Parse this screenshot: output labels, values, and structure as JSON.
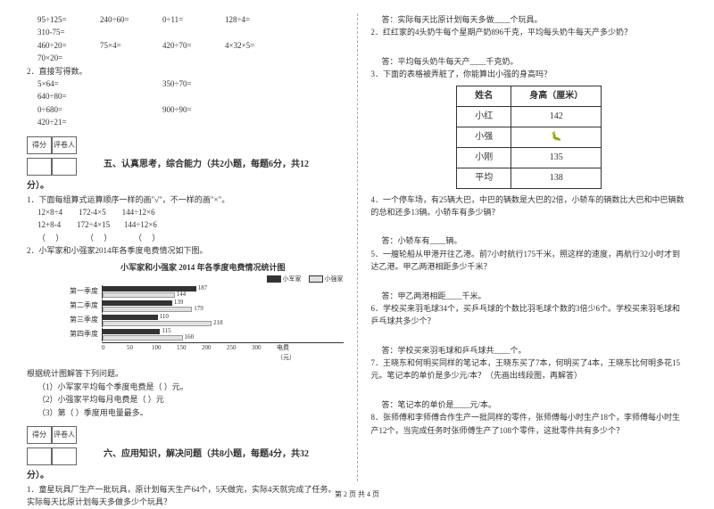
{
  "arithmetic": {
    "rows": [
      [
        "95÷125=",
        "240÷60=",
        "0÷11=",
        "128÷4=",
        "310-75="
      ],
      [
        "460÷20=",
        "75×4=",
        "420÷70=",
        "4×32×5=",
        "70×20="
      ]
    ],
    "direct_label": "2．直接写得数。",
    "direct_rows": [
      [
        "5×64=",
        "",
        "350÷70=",
        "",
        "640÷80="
      ],
      [
        "0÷680=",
        "",
        "900÷90=",
        "",
        "420÷21="
      ]
    ]
  },
  "score_labels": {
    "score": "得分",
    "marker": "评卷人"
  },
  "section5": {
    "title": "五、认真思考，综合能力（共2小题，每题6分，共12",
    "tail": "分）。",
    "q1_intro": "1．下面每组算式运算顺序一样的画\"√\"，不一样的画\"×\"。",
    "q1_groups": [
      "12×8÷4        172-4×5        144÷12×6",
      "12+8-4        172÷4×15       144÷12×6",
      "（     ）           （     ）           （     ）"
    ],
    "q2_intro": "2．小军家和小强家2014年各季度电费情况如下图。",
    "chart": {
      "title": "小军家和小强家 2014 年各季度电费情况统计图",
      "legend": [
        {
          "name": "小军家",
          "color": "#333333"
        },
        {
          "name": "小强家",
          "color": "#e0e0e0"
        }
      ],
      "unit": 50,
      "categories": [
        {
          "label": "第一季度",
          "a": 187,
          "b": 144
        },
        {
          "label": "第二季度",
          "a": 139,
          "b": 179
        },
        {
          "label": "第三季度",
          "a": 110,
          "b": 218
        },
        {
          "label": "第四季度",
          "a": 115,
          "b": 160
        }
      ],
      "xticks": [
        0,
        50,
        100,
        150,
        200,
        250,
        300
      ],
      "xlabel": "电费（元）"
    },
    "q2_tail": [
      "根据统计图解答下列问题。",
      "（1）小军家平均每个季度电费是（     ）元。",
      "（2）小强家平均每月电费是（     ）元",
      "（3）第（   ）季度用电量最多。"
    ]
  },
  "section6": {
    "title": "六、应用知识，解决问题（共8小题，每题4分，共32",
    "tail": "分）。",
    "q1": "1．童星玩具厂生产一批玩具，原计划每天生产64个，5天做完，实际4天就完成了任务。实际每天比原计划每天多做多少个玩具？"
  },
  "right": {
    "a1": "答：实际每天比原计划每天多做____个玩具。",
    "q2": "2．红红家的4头奶牛每个星期产奶896千克，平均每头奶牛每天产多少奶？",
    "a2": "答：平均每头奶牛每天产____千克奶。",
    "q3": "3．下面的表格被弄脏了，你能算出小强的身高吗？",
    "table": {
      "header": [
        "姓名",
        "身高（厘米）"
      ],
      "rows": [
        [
          "小红",
          "142"
        ],
        [
          "小强",
          "BUG"
        ],
        [
          "小刚",
          "135"
        ],
        [
          "平均",
          "138"
        ]
      ]
    },
    "q4": "4．一个停车场，有25辆大巴，中巴的辆数是大巴的2倍，小轿车的辆数比大巴和中巴辆数的总和还多13辆。小轿车有多少辆？",
    "a4": "答：小轿车有____辆。",
    "q5": "5．一艘轮船从甲港开往乙港。前7小时航行175千米，照这样的速度，再航行32小时才到达乙港。甲乙两港相距多少千米？",
    "a5": "答：甲乙两港相距____千米。",
    "q6": "6．学校买来羽毛球34个，买乒乓球的个数比羽毛球个数的3倍少6个。学校买来羽毛球和乒乓球共多少个？",
    "a6": "答：学校买来羽毛球和乒乓球共____个。",
    "q7": "7．王晓东和何明买同样的笔记本，王晓东买了7本，何明买了4本，王晓东比何明多花15元。笔记本的单价是多少元/本？（先画出线段图，再解答）",
    "a7": "答：笔记本的单价是____元/本。",
    "q8": "8．张师傅和李师傅合作生产一批同样的零件，张师傅每小时生产18个，李师傅每小时生产12个，当完成任务时张师傅生产了108个零件，这批零件共有多少个？"
  },
  "footer": "第 2 页 共 4 页"
}
